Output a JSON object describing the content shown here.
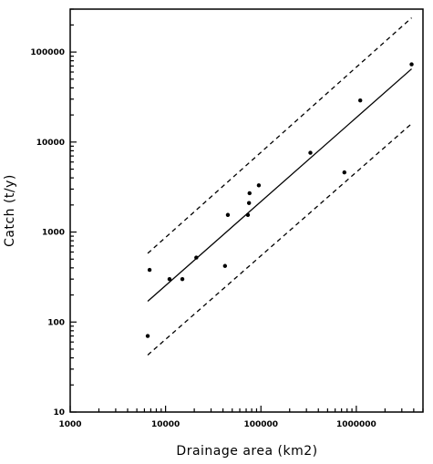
{
  "chart_data": {
    "type": "scatter",
    "title": "",
    "xlabel": "Drainage area (km2)",
    "ylabel": "Catch (t/y)",
    "xscale": "log",
    "yscale": "log",
    "xlim": [
      1000,
      5000000
    ],
    "ylim": [
      10,
      300000
    ],
    "grid": false,
    "xticks": [
      1000,
      10000,
      100000,
      1000000
    ],
    "xtick_labels": [
      "1000",
      "10000",
      "100000",
      "1000000"
    ],
    "yticks": [
      10,
      100,
      1000,
      10000,
      100000
    ],
    "ytick_labels": [
      "10",
      "100",
      "1000",
      "10000",
      "100000"
    ],
    "series": [
      {
        "kind": "points",
        "marker": "dot",
        "x": [
          6500,
          6800,
          11000,
          15000,
          21000,
          42000,
          45000,
          73000,
          75000,
          76000,
          95000,
          330000,
          750000,
          1100000,
          3800000
        ],
        "y": [
          70,
          380,
          300,
          300,
          520,
          420,
          1550,
          1550,
          2100,
          2700,
          3300,
          7600,
          4600,
          29000,
          73000
        ]
      },
      {
        "kind": "regression-line",
        "style": "solid",
        "x": [
          6500,
          3800000
        ],
        "y": [
          170,
          65000
        ]
      },
      {
        "kind": "upper-bound",
        "style": "dashed",
        "x": [
          6500,
          3800000
        ],
        "y": [
          580,
          240000
        ]
      },
      {
        "kind": "lower-bound",
        "style": "dashed",
        "x": [
          6500,
          3800000
        ],
        "y": [
          43,
          16000
        ]
      }
    ]
  }
}
